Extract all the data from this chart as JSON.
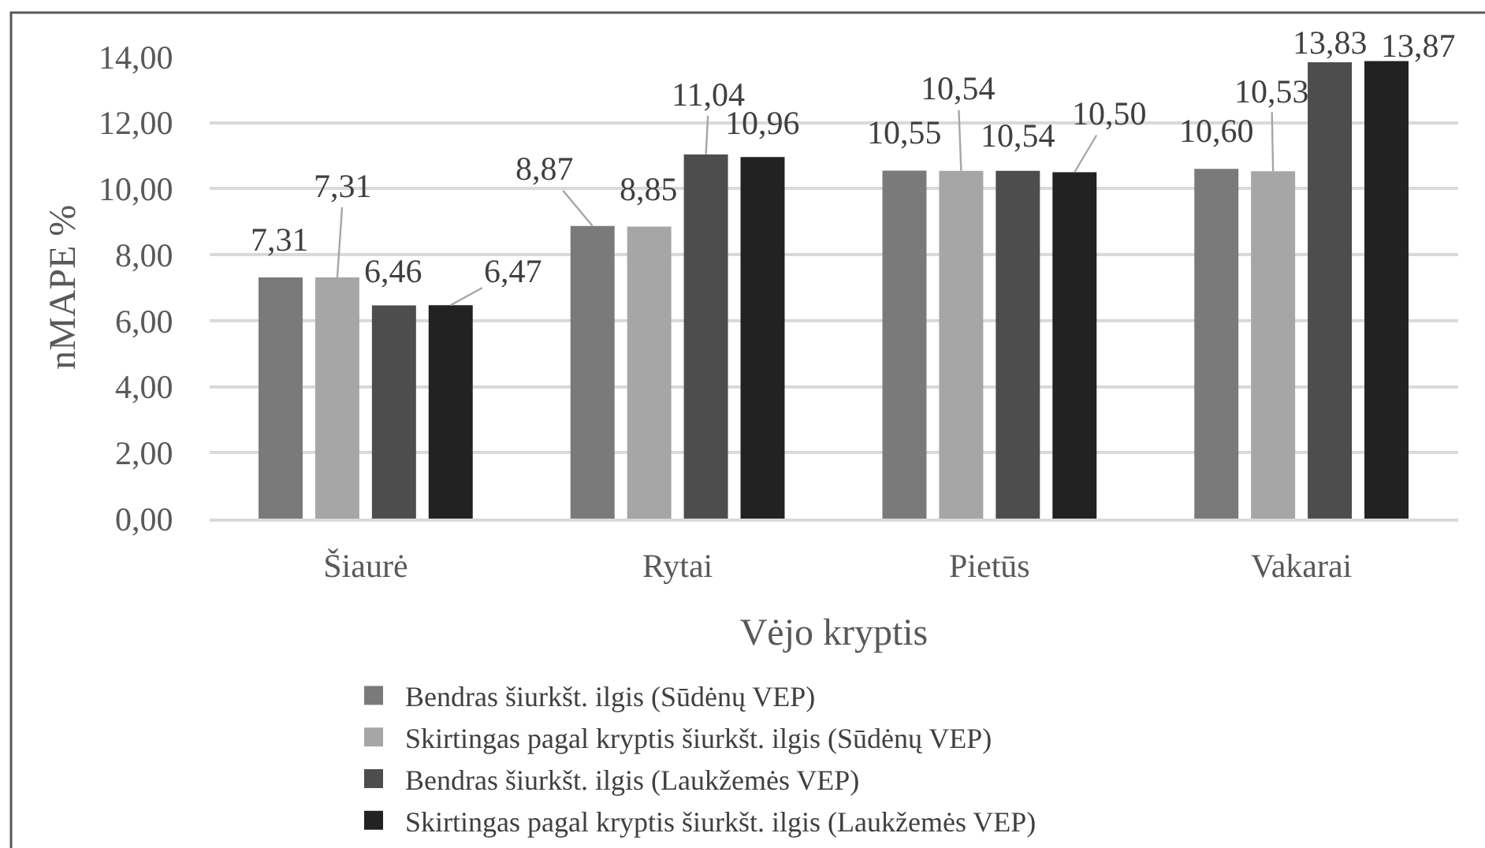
{
  "chart_data": {
    "type": "bar",
    "xlabel": "Vėjo kryptis",
    "ylabel": "nMAPE %",
    "categories": [
      "Šiaurė",
      "Rytai",
      "Pietūs",
      "Vakarai"
    ],
    "series": [
      {
        "name": "Bendras šiurkšt. ilgis (Sūdėnų VEP)",
        "color": "#7a7a7a",
        "values": [
          7.31,
          8.87,
          10.55,
          10.6
        ],
        "value_labels": [
          "7,31",
          "8,87",
          "10,55",
          "10,60"
        ]
      },
      {
        "name": "Skirtingas pagal kryptis šiurkšt. ilgis (Sūdėnų VEP)",
        "color": "#a6a6a6",
        "values": [
          7.31,
          8.85,
          10.54,
          10.53
        ],
        "value_labels": [
          "7,31",
          "8,85",
          "10,54",
          "10,53"
        ]
      },
      {
        "name": "Bendras šiurkšt. ilgis (Laukžemės VEP)",
        "color": "#4d4d4d",
        "values": [
          6.46,
          11.04,
          10.54,
          13.83
        ],
        "value_labels": [
          "6,46",
          "11,04",
          "10,54",
          "13,83"
        ]
      },
      {
        "name": "Skirtingas pagal kryptis šiurkšt. ilgis (Laukžemės VEP)",
        "color": "#222222",
        "values": [
          6.47,
          10.96,
          10.5,
          13.87
        ],
        "value_labels": [
          "6,47",
          "10,96",
          "10,50",
          "13,87"
        ]
      }
    ],
    "ylim": [
      0,
      14
    ],
    "yticks": [
      {
        "value": 0,
        "label": "0,00"
      },
      {
        "value": 2,
        "label": "2,00"
      },
      {
        "value": 4,
        "label": "4,00"
      },
      {
        "value": 6,
        "label": "6,00"
      },
      {
        "value": 8,
        "label": "8,00"
      },
      {
        "value": 10,
        "label": "10,00"
      },
      {
        "value": 12,
        "label": "12,00"
      },
      {
        "value": 14,
        "label": "14,00"
      }
    ],
    "grid": "y",
    "legend": "bottom"
  }
}
